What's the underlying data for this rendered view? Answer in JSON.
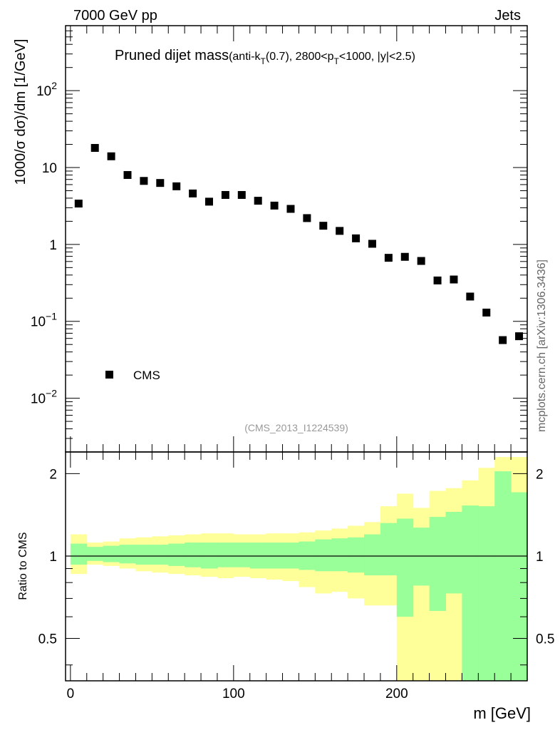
{
  "header": {
    "left_label": "7000 GeV pp",
    "right_label": "Jets",
    "side_label": "mcplots.cern.ch [arXiv:1306.3436]"
  },
  "chart_data": [
    {
      "id": "main",
      "type": "scatter",
      "scale": "log",
      "title_main": "Pruned dijet mass",
      "title_sub_parts": [
        "(anti-k",
        "T",
        "(0.7), 2800<p",
        "T",
        "<1000, |y|<2.5)"
      ],
      "ylabel": "1000/σ dσ)/dm [1/GeV]",
      "xlim": [
        -3,
        280
      ],
      "ylim": [
        0.002,
        700
      ],
      "yticks": [
        {
          "value": 100,
          "base": "10",
          "exp": "2"
        },
        {
          "value": 10,
          "base": "10",
          "exp": ""
        },
        {
          "value": 1,
          "base": "1",
          "exp": ""
        },
        {
          "value": 0.1,
          "base": "10",
          "exp": "−1"
        },
        {
          "value": 0.01,
          "base": "10",
          "exp": "−2"
        }
      ],
      "legend": {
        "label": "CMS",
        "position": "bottom-left"
      },
      "watermark": "(CMS_2013_I1224539)",
      "series": [
        {
          "name": "CMS",
          "x": [
            5,
            15,
            25,
            35,
            45,
            55,
            65,
            75,
            85,
            95,
            105,
            115,
            125,
            135,
            145,
            155,
            165,
            175,
            185,
            195,
            205,
            215,
            225,
            235,
            245,
            255,
            265,
            275
          ],
          "y": [
            3.4,
            18,
            14,
            8.0,
            6.7,
            6.3,
            5.7,
            4.6,
            3.6,
            4.4,
            4.4,
            3.7,
            3.2,
            2.9,
            2.2,
            1.75,
            1.5,
            1.2,
            1.02,
            0.67,
            0.69,
            0.61,
            0.34,
            0.35,
            0.21,
            0.13,
            0.057,
            0.064
          ]
        }
      ]
    },
    {
      "id": "ratio",
      "type": "area",
      "scale": "log",
      "ylabel": "Ratio to CMS",
      "xlabel": "m [GeV]",
      "xlim": [
        -3,
        280
      ],
      "ylim": [
        0.35,
        2.4
      ],
      "yticks": [
        {
          "value": 2,
          "label": "2"
        },
        {
          "value": 1,
          "label": "1"
        },
        {
          "value": 0.5,
          "label": "0.5"
        }
      ],
      "xticks": [
        {
          "value": 0,
          "label": "0"
        },
        {
          "value": 100,
          "label": "100"
        },
        {
          "value": 200,
          "label": "200"
        }
      ],
      "bin_edges": [
        0,
        10,
        20,
        30,
        40,
        50,
        60,
        70,
        80,
        90,
        100,
        110,
        120,
        130,
        140,
        150,
        160,
        170,
        180,
        190,
        200,
        210,
        220,
        230,
        240,
        250,
        260,
        270,
        280
      ],
      "bands": [
        {
          "name": "total uncertainty",
          "color": "#ffff99",
          "lo": [
            0.86,
            0.93,
            0.92,
            0.9,
            0.88,
            0.87,
            0.86,
            0.85,
            0.84,
            0.83,
            0.84,
            0.83,
            0.82,
            0.81,
            0.77,
            0.73,
            0.74,
            0.7,
            0.66,
            0.66,
            0.3,
            0.3,
            0.3,
            0.3,
            0.3,
            0.3,
            0.3,
            0.3
          ],
          "hi": [
            1.2,
            1.12,
            1.13,
            1.16,
            1.17,
            1.18,
            1.19,
            1.2,
            1.21,
            1.21,
            1.2,
            1.2,
            1.21,
            1.21,
            1.22,
            1.24,
            1.26,
            1.29,
            1.33,
            1.52,
            1.69,
            1.5,
            1.73,
            1.77,
            1.89,
            2.1,
            2.3,
            2.3
          ]
        },
        {
          "name": "statistical",
          "color": "#99ff99",
          "lo": [
            0.93,
            0.96,
            0.95,
            0.94,
            0.93,
            0.93,
            0.92,
            0.91,
            0.9,
            0.91,
            0.91,
            0.9,
            0.9,
            0.9,
            0.89,
            0.88,
            0.88,
            0.87,
            0.85,
            0.85,
            0.6,
            0.78,
            0.63,
            0.73,
            0.3,
            0.3,
            0.3,
            0.3
          ],
          "hi": [
            1.11,
            1.08,
            1.09,
            1.1,
            1.1,
            1.1,
            1.11,
            1.12,
            1.12,
            1.12,
            1.12,
            1.12,
            1.12,
            1.12,
            1.13,
            1.15,
            1.16,
            1.17,
            1.2,
            1.32,
            1.37,
            1.27,
            1.39,
            1.45,
            1.53,
            1.52,
            2.04,
            1.71
          ]
        }
      ],
      "reference_line": 1
    }
  ]
}
